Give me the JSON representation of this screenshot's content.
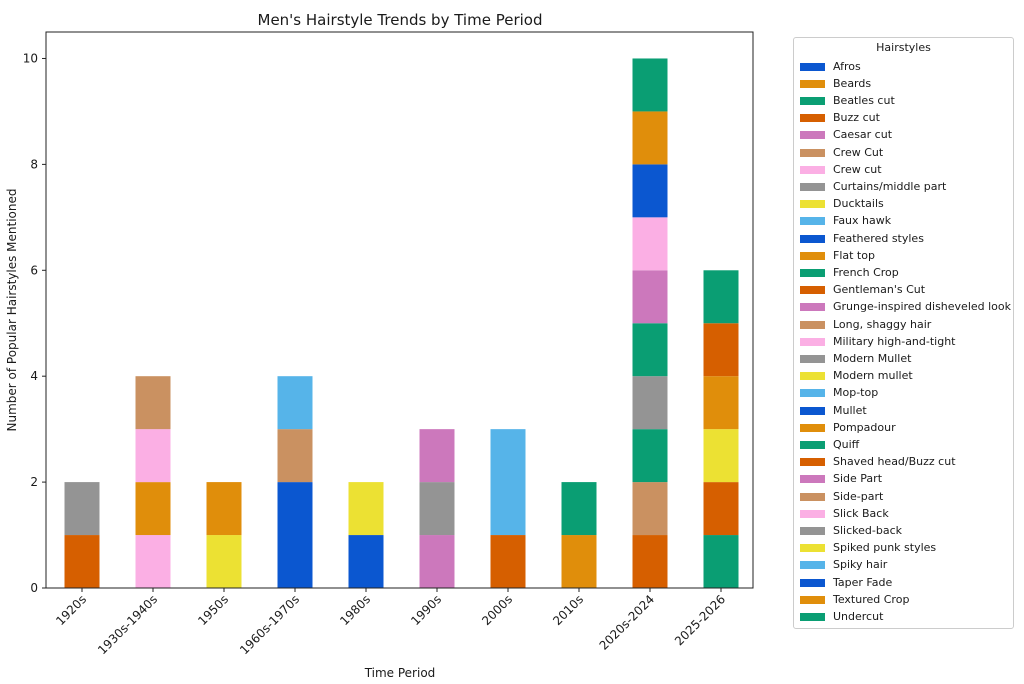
{
  "chart_data": {
    "type": "bar",
    "stacked": true,
    "title": "Men's Hairstyle Trends by Time Period",
    "xlabel": "Time Period",
    "ylabel": "Number of Popular Hairstyles Mentioned",
    "ylim": [
      0,
      10.5
    ],
    "yticks": [
      0,
      2,
      4,
      6,
      8,
      10
    ],
    "grid": false,
    "legend_title": "Hairstyles",
    "legend_placement": "outside-right",
    "categories": [
      "1920s",
      "1930s-1940s",
      "1950s",
      "1960s-1970s",
      "1980s",
      "1990s",
      "2000s",
      "2010s",
      "2020s-2024",
      "2025-2026"
    ],
    "series": [
      {
        "name": "Afros",
        "color": "#0b57d0",
        "values": [
          0,
          0,
          0,
          0,
          0,
          0,
          0,
          0,
          0,
          0
        ]
      },
      {
        "name": "Beards",
        "color": "#e08e0b",
        "values": [
          0,
          0,
          0,
          0,
          0,
          0,
          0,
          0,
          0,
          0
        ]
      },
      {
        "name": "Beatles cut",
        "color": "#0a9e73",
        "values": [
          0,
          0,
          0,
          0,
          0,
          0,
          0,
          0,
          0,
          0
        ]
      },
      {
        "name": "Buzz cut",
        "color": "#d65f00",
        "values": [
          1,
          0,
          0,
          0,
          0,
          0,
          1,
          0,
          1,
          0
        ]
      },
      {
        "name": "Caesar cut",
        "color": "#cc78bc",
        "values": [
          0,
          0,
          0,
          0,
          0,
          1,
          0,
          0,
          0,
          0
        ]
      },
      {
        "name": "Crew Cut",
        "color": "#ca9161",
        "values": [
          0,
          0,
          0,
          0,
          0,
          0,
          0,
          0,
          1,
          0
        ]
      },
      {
        "name": "Crew cut",
        "color": "#fbafe4",
        "values": [
          0,
          1,
          0,
          0,
          0,
          0,
          0,
          0,
          0,
          0
        ]
      },
      {
        "name": "Curtains/middle part",
        "color": "#949494",
        "values": [
          1,
          0,
          0,
          0,
          0,
          1,
          0,
          0,
          0,
          0
        ]
      },
      {
        "name": "Ducktails",
        "color": "#ece133",
        "values": [
          0,
          0,
          1,
          0,
          0,
          0,
          0,
          0,
          0,
          0
        ]
      },
      {
        "name": "Faux hawk",
        "color": "#56b4e9",
        "values": [
          0,
          0,
          0,
          0,
          0,
          0,
          2,
          0,
          0,
          0
        ]
      },
      {
        "name": "Feathered styles",
        "color": "#0b57d0",
        "values": [
          0,
          0,
          0,
          2,
          1,
          0,
          0,
          0,
          0,
          0
        ]
      },
      {
        "name": "Flat top",
        "color": "#e08e0b",
        "values": [
          0,
          1,
          1,
          0,
          0,
          0,
          0,
          0,
          0,
          0
        ]
      },
      {
        "name": "French Crop",
        "color": "#0a9e73",
        "values": [
          0,
          0,
          0,
          0,
          0,
          0,
          0,
          0,
          1,
          1
        ]
      },
      {
        "name": "Gentleman's Cut",
        "color": "#d65f00",
        "values": [
          0,
          0,
          0,
          0,
          0,
          0,
          0,
          0,
          0,
          1
        ]
      },
      {
        "name": "Grunge-inspired disheveled look",
        "color": "#cc78bc",
        "values": [
          0,
          0,
          0,
          0,
          0,
          1,
          0,
          0,
          0,
          0
        ]
      },
      {
        "name": "Long, shaggy hair",
        "color": "#ca9161",
        "values": [
          0,
          0,
          0,
          1,
          0,
          0,
          0,
          0,
          0,
          0
        ]
      },
      {
        "name": "Military high-and-tight",
        "color": "#fbafe4",
        "values": [
          0,
          1,
          0,
          0,
          0,
          0,
          0,
          0,
          0,
          0
        ]
      },
      {
        "name": "Modern Mullet",
        "color": "#949494",
        "values": [
          0,
          0,
          0,
          0,
          0,
          0,
          0,
          0,
          1,
          0
        ]
      },
      {
        "name": "Modern mullet",
        "color": "#ece133",
        "values": [
          0,
          0,
          0,
          0,
          0,
          0,
          0,
          0,
          0,
          1
        ]
      },
      {
        "name": "Mop-top",
        "color": "#56b4e9",
        "values": [
          0,
          0,
          0,
          1,
          0,
          0,
          0,
          0,
          0,
          0
        ]
      },
      {
        "name": "Mullet",
        "color": "#0b57d0",
        "values": [
          0,
          0,
          0,
          0,
          0,
          0,
          0,
          0,
          0,
          0
        ]
      },
      {
        "name": "Pompadour",
        "color": "#e08e0b",
        "values": [
          0,
          0,
          0,
          0,
          0,
          0,
          0,
          1,
          0,
          1
        ]
      },
      {
        "name": "Quiff",
        "color": "#0a9e73",
        "values": [
          0,
          0,
          0,
          0,
          0,
          0,
          0,
          1,
          1,
          0
        ]
      },
      {
        "name": "Shaved head/Buzz cut",
        "color": "#d65f00",
        "values": [
          0,
          0,
          0,
          0,
          0,
          0,
          0,
          0,
          0,
          1
        ]
      },
      {
        "name": "Side Part",
        "color": "#cc78bc",
        "values": [
          0,
          0,
          0,
          0,
          0,
          0,
          0,
          0,
          1,
          0
        ]
      },
      {
        "name": "Side-part",
        "color": "#ca9161",
        "values": [
          0,
          1,
          0,
          0,
          0,
          0,
          0,
          0,
          0,
          0
        ]
      },
      {
        "name": "Slick Back",
        "color": "#fbafe4",
        "values": [
          0,
          0,
          0,
          0,
          0,
          0,
          0,
          0,
          1,
          0
        ]
      },
      {
        "name": "Slicked-back",
        "color": "#949494",
        "values": [
          0,
          0,
          0,
          0,
          0,
          0,
          0,
          0,
          0,
          0
        ]
      },
      {
        "name": "Spiked punk styles",
        "color": "#ece133",
        "values": [
          0,
          0,
          0,
          0,
          1,
          0,
          0,
          0,
          0,
          0
        ]
      },
      {
        "name": "Spiky hair",
        "color": "#56b4e9",
        "values": [
          0,
          0,
          0,
          0,
          0,
          0,
          0,
          0,
          0,
          0
        ]
      },
      {
        "name": "Taper Fade",
        "color": "#0b57d0",
        "values": [
          0,
          0,
          0,
          0,
          0,
          0,
          0,
          0,
          1,
          0
        ]
      },
      {
        "name": "Textured Crop",
        "color": "#e08e0b",
        "values": [
          0,
          0,
          0,
          0,
          0,
          0,
          0,
          0,
          1,
          0
        ]
      },
      {
        "name": "Undercut",
        "color": "#0a9e73",
        "values": [
          0,
          0,
          0,
          0,
          0,
          0,
          0,
          0,
          1,
          1
        ]
      }
    ]
  }
}
